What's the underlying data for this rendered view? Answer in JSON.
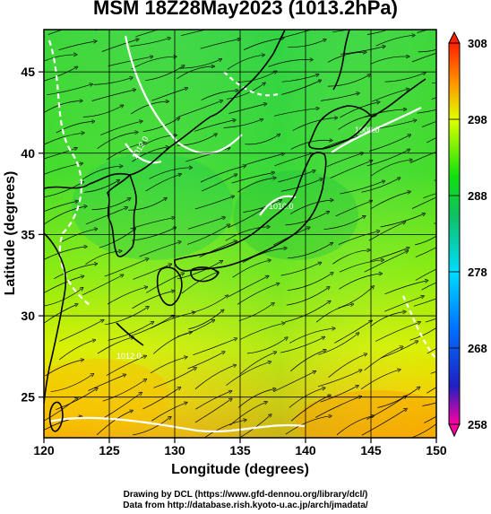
{
  "title": "MSM 18Z28May2023 (1013.2hPa)",
  "xlabel": "Longitude (degrees)",
  "ylabel": "Latitude  (degrees)",
  "x_ticks": [
    "120",
    "125",
    "130",
    "135",
    "140",
    "145",
    "150"
  ],
  "y_ticks": [
    "25",
    "30",
    "35",
    "40",
    "45"
  ],
  "colorbar": {
    "ticks": [
      "308",
      "298",
      "288",
      "278",
      "268",
      "258"
    ],
    "range": [
      258,
      308
    ],
    "colors": [
      "#ff00a0",
      "#1010c0",
      "#0060ff",
      "#00d8ff",
      "#10c060",
      "#10e010",
      "#e0ff00",
      "#ff9000",
      "#ff2000"
    ]
  },
  "contour_labels": [
    "1012.0",
    "1010.0",
    "1008.0",
    "1012.0"
  ],
  "credits": {
    "line1": "Drawing by DCL (https://www.gfd-dennou.org/library/dcl/)",
    "line2": "Data from http://database.rish.kyoto-u.ac.jp/arch/jmadata/"
  },
  "chart_data": {
    "type": "heatmap",
    "title": "MSM 18Z28May2023 (1013.2hPa)",
    "xlabel": "Longitude (degrees)",
    "ylabel": "Latitude  (degrees)",
    "xlim": [
      120,
      150
    ],
    "ylim": [
      22.5,
      47.6
    ],
    "x_ticks": [
      120,
      125,
      130,
      135,
      140,
      145,
      150
    ],
    "y_ticks": [
      25,
      30,
      35,
      40,
      45
    ],
    "grid": true,
    "colorbar_range": [
      258,
      308
    ],
    "colorbar_ticks": [
      308,
      298,
      288,
      278,
      268,
      258
    ],
    "field_estimates": [
      {
        "lon": 122,
        "lat": 46,
        "value": 290
      },
      {
        "lon": 140,
        "lat": 46,
        "value": 287
      },
      {
        "lon": 148,
        "lat": 46,
        "value": 289
      },
      {
        "lon": 135,
        "lat": 40,
        "value": 289
      },
      {
        "lon": 140,
        "lat": 36,
        "value": 287
      },
      {
        "lon": 125,
        "lat": 32,
        "value": 292
      },
      {
        "lon": 145,
        "lat": 30,
        "value": 293
      },
      {
        "lon": 125,
        "lat": 26,
        "value": 297
      },
      {
        "lon": 145,
        "lat": 24,
        "value": 301
      }
    ]
  }
}
